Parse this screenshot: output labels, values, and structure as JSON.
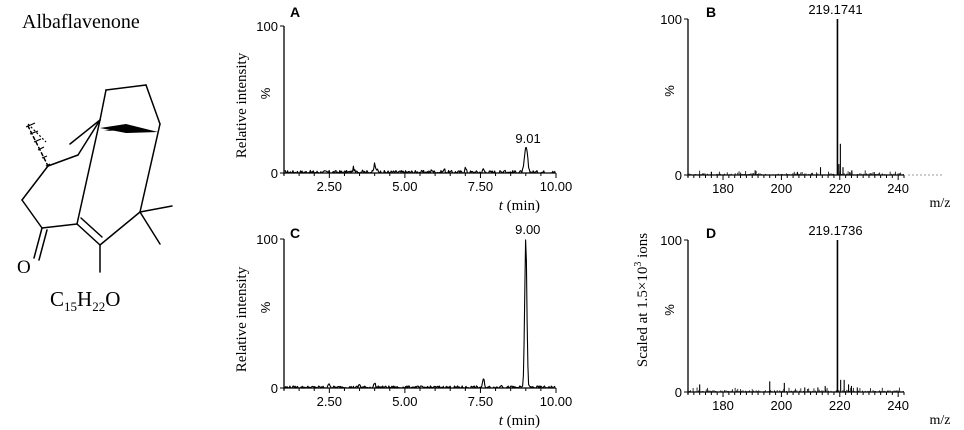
{
  "compound": {
    "name": "Albaflavenone",
    "formula": {
      "c": "C",
      "c_sub": "15",
      "h": "H",
      "h_sub": "22",
      "o": "O"
    }
  },
  "chart_data": [
    {
      "panel": "A",
      "type": "line",
      "ylabel": "Relative  intensity",
      "ylabel_pct": "%",
      "xlabel_t": "t",
      "xlabel_unit": " (min)",
      "xlim": [
        1.0,
        10.0
      ],
      "ylim": [
        0,
        100
      ],
      "xticks": [
        "2.50",
        "5.00",
        "7.50",
        "10.00"
      ],
      "xtick_values": [
        2.5,
        5.0,
        7.5,
        10.0
      ],
      "yticks": [
        "100",
        "0"
      ],
      "ytick_values": [
        100,
        0
      ],
      "peak_label": "9.01",
      "peak": {
        "x": 9.01,
        "y": 17
      },
      "noise": [
        [
          3.3,
          3
        ],
        [
          3.6,
          2
        ],
        [
          4.0,
          6
        ],
        [
          4.1,
          2
        ],
        [
          5.9,
          2
        ],
        [
          6.3,
          2
        ],
        [
          7.0,
          3
        ],
        [
          7.6,
          2
        ],
        [
          8.3,
          2
        ]
      ],
      "noise_amp": 2.5
    },
    {
      "panel": "B",
      "type": "bar",
      "xlim": [
        168,
        242
      ],
      "ylim": [
        0,
        100
      ],
      "xticks": [
        "180",
        "200",
        "220",
        "240"
      ],
      "xtick_values": [
        180,
        200,
        220,
        240
      ],
      "yticks": [
        "100",
        "0"
      ],
      "ytick_values": [
        100,
        0
      ],
      "ylabel_pct": "%",
      "xlabel": "m/z",
      "peak_label": "219.1741",
      "peaks": [
        [
          219.2,
          100
        ],
        [
          220.2,
          20
        ],
        [
          219.7,
          7
        ],
        [
          221.1,
          5
        ],
        [
          191.0,
          3
        ],
        [
          213.4,
          5
        ],
        [
          224.1,
          3
        ],
        [
          176.0,
          2
        ],
        [
          205.5,
          2
        ]
      ],
      "noise_amp": 3
    },
    {
      "panel": "C",
      "type": "line",
      "ylabel": "Relative  intensity",
      "ylabel_pct": "%",
      "xlabel_t": "t",
      "xlabel_unit": " (min)",
      "xlim": [
        1.0,
        10.0
      ],
      "ylim": [
        0,
        100
      ],
      "xticks": [
        "2.50",
        "5.00",
        "7.50",
        "10.00"
      ],
      "xtick_values": [
        2.5,
        5.0,
        7.5,
        10.0
      ],
      "yticks": [
        "100",
        "0"
      ],
      "ytick_values": [
        100,
        0
      ],
      "peak_label": "9.00",
      "peak": {
        "x": 9.0,
        "y": 100
      },
      "noise": [
        [
          2.5,
          3
        ],
        [
          3.5,
          2
        ],
        [
          4.0,
          3
        ],
        [
          7.6,
          6
        ],
        [
          8.2,
          2
        ]
      ],
      "noise_amp": 2
    },
    {
      "panel": "D",
      "type": "bar",
      "xlim": [
        168,
        242
      ],
      "ylim": [
        0,
        100
      ],
      "xticks": [
        "180",
        "200",
        "220",
        "240"
      ],
      "xtick_values": [
        180,
        200,
        220,
        240
      ],
      "yticks": [
        "100",
        "0"
      ],
      "ytick_values": [
        100,
        0
      ],
      "ylabel_pct": "%",
      "xlabel": "m/z",
      "peak_label": "219.1736",
      "peaks": [
        [
          219.2,
          100
        ],
        [
          220.3,
          8
        ],
        [
          221.5,
          8
        ],
        [
          196.0,
          7
        ],
        [
          201.0,
          6
        ],
        [
          172.0,
          5
        ],
        [
          223.0,
          5
        ],
        [
          224.0,
          4
        ],
        [
          215.0,
          4
        ],
        [
          212.5,
          3
        ],
        [
          208.0,
          3
        ],
        [
          226.0,
          3
        ]
      ],
      "noise_amp": 3
    }
  ],
  "shared_ylabel": {
    "text": "Scaled  at 1.5×10",
    "sup": "3",
    "suffix": " ions"
  }
}
